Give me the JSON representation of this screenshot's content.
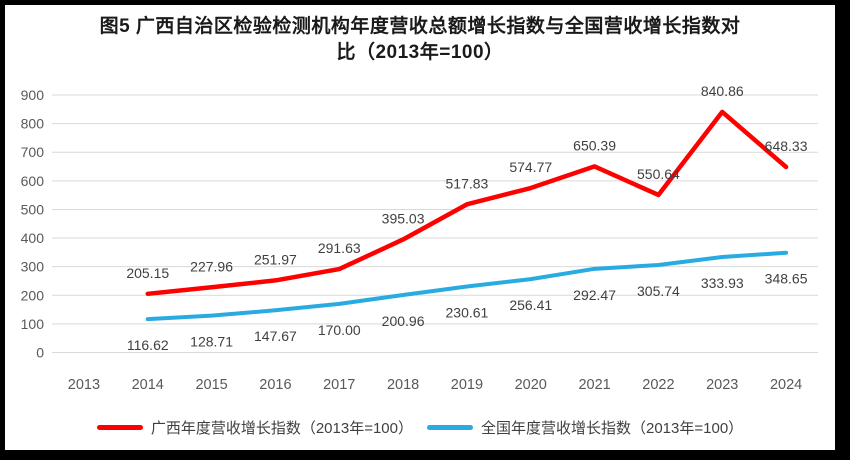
{
  "title": {
    "line1": "图5  广西自治区检验检测机构年度营收总额增长指数与全国营收增长指数对",
    "line2": "比（2013年=100）"
  },
  "colors": {
    "guangxi_line": "#FF0000",
    "national_line": "#29ABE2",
    "gridline": "#D9D9D9",
    "tick_label": "#595959",
    "data_label": "#404040",
    "frame_border": "#000000"
  },
  "chart_data": {
    "type": "line",
    "title": "图5 广西自治区检验检测机构年度营收总额增长指数与全国营收增长指数对比（2013年=100）",
    "categories": [
      "2013",
      "2014",
      "2015",
      "2016",
      "2017",
      "2018",
      "2019",
      "2020",
      "2021",
      "2022",
      "2023",
      "2024"
    ],
    "series": [
      {
        "name": "广西年度营收增长指数（2013年=100）",
        "color": "#FF0000",
        "values": [
          null,
          205.15,
          227.96,
          251.97,
          291.63,
          395.03,
          517.83,
          574.77,
          650.39,
          550.64,
          840.86,
          648.33
        ],
        "labels": [
          "",
          "205.15",
          "227.96",
          "251.97",
          "291.63",
          "395.03",
          "517.83",
          "574.77",
          "650.39",
          "550.64",
          "840.86",
          "648.33"
        ],
        "label_position": "above"
      },
      {
        "name": "全国年度营收增长指数（2013年=100）",
        "color": "#29ABE2",
        "values": [
          null,
          116.62,
          128.71,
          147.67,
          170.0,
          200.96,
          230.61,
          256.41,
          292.47,
          305.74,
          333.93,
          348.65
        ],
        "labels": [
          "",
          "116.62",
          "128.71",
          "147.67",
          "170.00",
          "200.96",
          "230.61",
          "256.41",
          "292.47",
          "305.74",
          "333.93",
          "348.65"
        ],
        "label_position": "below"
      }
    ],
    "xlabel": "",
    "ylabel": "",
    "ylim": [
      0,
      900
    ],
    "ytick_step": 100,
    "yticks": [
      "0",
      "100",
      "200",
      "300",
      "400",
      "500",
      "600",
      "700",
      "800",
      "900"
    ],
    "grid": true,
    "legend_position": "bottom"
  }
}
